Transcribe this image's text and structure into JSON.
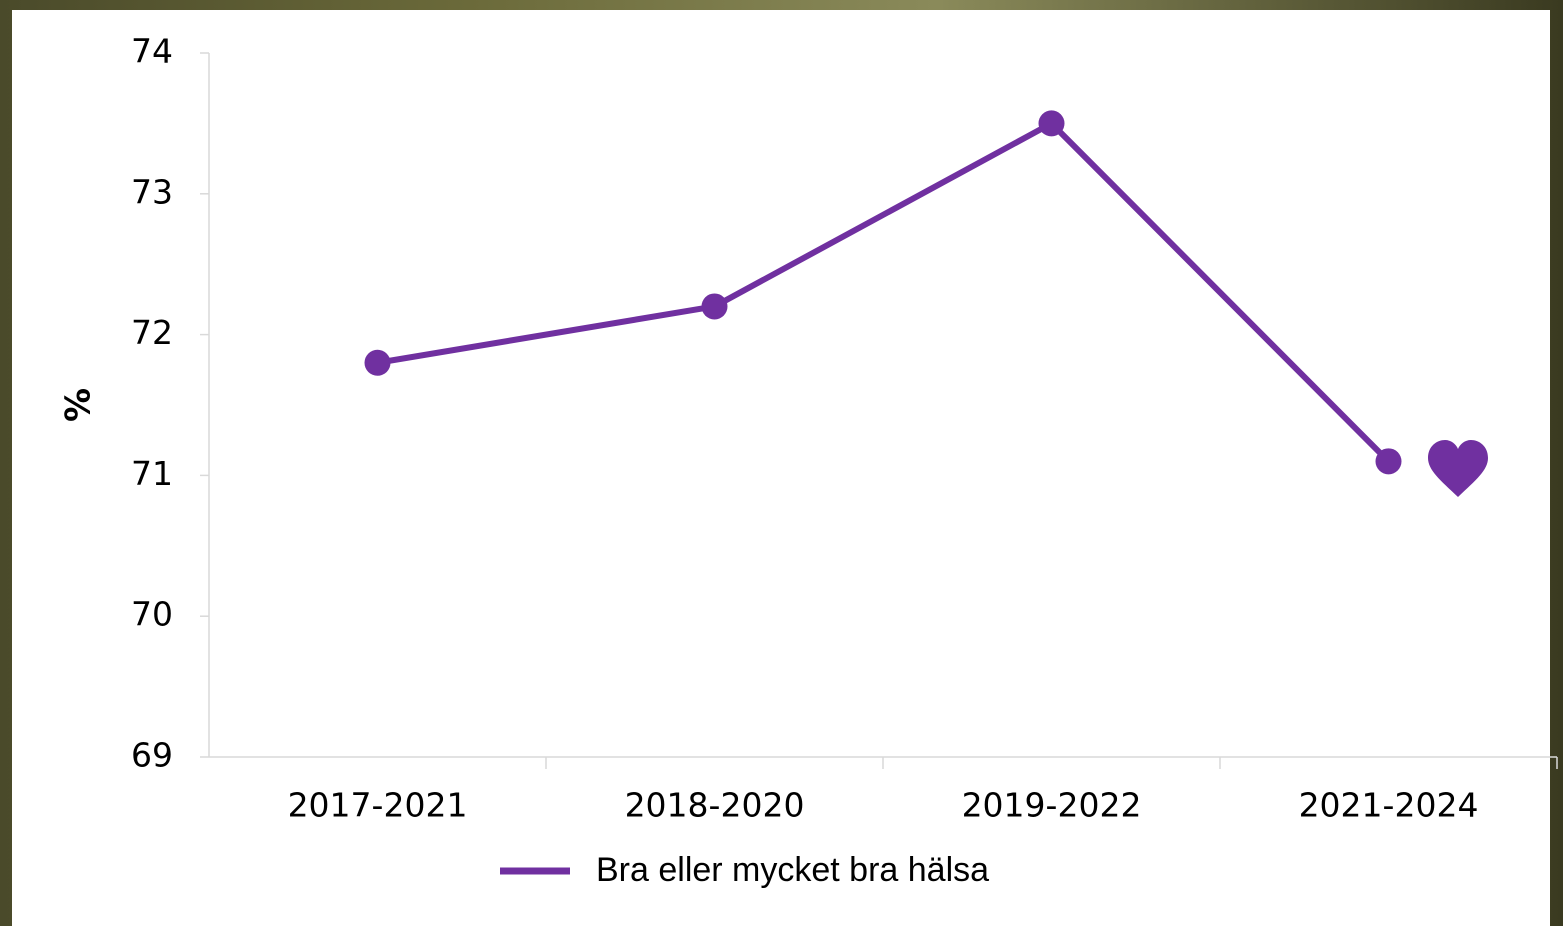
{
  "chart_data": {
    "type": "line",
    "categories": [
      "2017-2021",
      "2018-2020",
      "2019-2022",
      "2021-2024"
    ],
    "series": [
      {
        "name": "Bra eller mycket bra hälsa",
        "color": "#7030a0",
        "values": [
          71.8,
          72.2,
          73.5,
          71.1
        ]
      }
    ],
    "y_label": "%",
    "ylim": [
      69,
      74
    ],
    "yticks": [
      69,
      70,
      71,
      72,
      73,
      74
    ],
    "grid": false,
    "legend": "bottom"
  }
}
